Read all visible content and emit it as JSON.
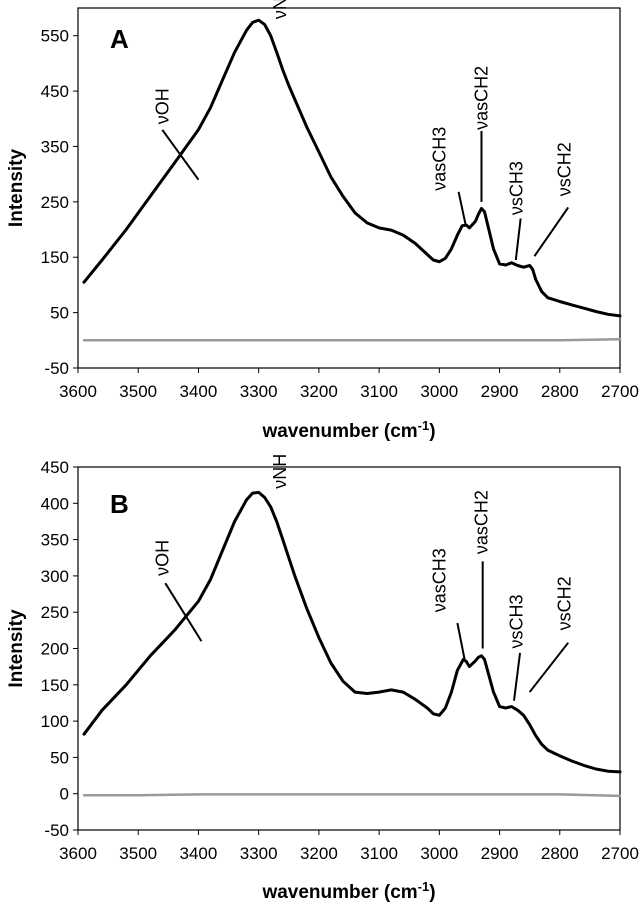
{
  "chart_data": [
    {
      "type": "line",
      "panel": "A",
      "xlabel": "wavenumber (cm-1)",
      "xlabel_main": "wavenumber (cm",
      "xlabel_sup": "-1",
      "xlabel_close": ")",
      "ylabel": "Intensity",
      "xlim": [
        3600,
        2700
      ],
      "ylim": [
        -50,
        600
      ],
      "x_ticks": [
        3600,
        3500,
        3400,
        3300,
        3200,
        3100,
        3000,
        2900,
        2800,
        2700
      ],
      "y_ticks": [
        -50,
        50,
        150,
        250,
        350,
        450,
        550
      ],
      "series": [
        {
          "name": "spectrum",
          "color": "#000000",
          "x": [
            3590,
            3560,
            3520,
            3480,
            3440,
            3400,
            3380,
            3360,
            3340,
            3320,
            3310,
            3300,
            3290,
            3280,
            3270,
            3260,
            3250,
            3240,
            3220,
            3200,
            3180,
            3160,
            3140,
            3120,
            3100,
            3080,
            3060,
            3040,
            3020,
            3010,
            3000,
            2990,
            2980,
            2970,
            2962,
            2955,
            2950,
            2940,
            2935,
            2930,
            2925,
            2920,
            2910,
            2900,
            2890,
            2880,
            2870,
            2860,
            2850,
            2845,
            2840,
            2830,
            2820,
            2800,
            2780,
            2760,
            2740,
            2720,
            2700
          ],
          "y": [
            105,
            145,
            200,
            260,
            320,
            380,
            420,
            470,
            520,
            560,
            574,
            578,
            570,
            550,
            520,
            488,
            460,
            435,
            385,
            340,
            295,
            260,
            230,
            212,
            203,
            199,
            190,
            175,
            155,
            145,
            142,
            148,
            165,
            190,
            207,
            208,
            203,
            215,
            228,
            238,
            232,
            210,
            165,
            138,
            136,
            140,
            135,
            132,
            135,
            128,
            110,
            88,
            77,
            70,
            64,
            58,
            52,
            47,
            44
          ]
        },
        {
          "name": "baseline",
          "color": "#999999",
          "x": [
            3590,
            3500,
            3400,
            3300,
            3200,
            3100,
            3000,
            2900,
            2800,
            2700
          ],
          "y": [
            0,
            0,
            0,
            0,
            0,
            0,
            0,
            0,
            0,
            2
          ]
        }
      ],
      "annotations": [
        "νOH",
        "νNH",
        "νasCH3",
        "νasCH2",
        "νsCH3",
        "νsCH2"
      ]
    },
    {
      "type": "line",
      "panel": "B",
      "xlabel": "wavenumber (cm-1)",
      "xlabel_main": "wavenumber (cm",
      "xlabel_sup": "-1",
      "xlabel_close": ")",
      "ylabel": "Intensity",
      "xlim": [
        3600,
        2700
      ],
      "ylim": [
        -50,
        450
      ],
      "x_ticks": [
        3600,
        3500,
        3400,
        3300,
        3200,
        3100,
        3000,
        2900,
        2800,
        2700
      ],
      "y_ticks": [
        -50,
        0,
        50,
        100,
        150,
        200,
        250,
        300,
        350,
        400,
        450
      ],
      "series": [
        {
          "name": "spectrum",
          "color": "#000000",
          "x": [
            3590,
            3560,
            3520,
            3480,
            3440,
            3400,
            3380,
            3360,
            3340,
            3320,
            3310,
            3300,
            3290,
            3280,
            3270,
            3260,
            3250,
            3240,
            3220,
            3200,
            3180,
            3160,
            3140,
            3120,
            3100,
            3080,
            3060,
            3040,
            3020,
            3010,
            3000,
            2990,
            2980,
            2970,
            2960,
            2955,
            2950,
            2940,
            2935,
            2930,
            2925,
            2920,
            2910,
            2900,
            2890,
            2880,
            2870,
            2860,
            2850,
            2840,
            2830,
            2820,
            2800,
            2780,
            2760,
            2740,
            2720,
            2700
          ],
          "y": [
            82,
            115,
            150,
            190,
            225,
            265,
            295,
            335,
            375,
            405,
            414,
            415,
            408,
            395,
            375,
            350,
            325,
            300,
            255,
            215,
            180,
            155,
            140,
            138,
            140,
            143,
            140,
            130,
            118,
            110,
            108,
            118,
            140,
            170,
            185,
            182,
            175,
            183,
            188,
            190,
            185,
            170,
            140,
            120,
            118,
            120,
            115,
            108,
            95,
            80,
            68,
            60,
            52,
            45,
            39,
            34,
            31,
            30
          ]
        },
        {
          "name": "baseline",
          "color": "#999999",
          "x": [
            3590,
            3500,
            3400,
            3300,
            3200,
            3100,
            3000,
            2900,
            2800,
            2700
          ],
          "y": [
            -2,
            -2,
            -1,
            -1,
            -1,
            -1,
            -1,
            -1,
            -1,
            -3
          ]
        }
      ],
      "annotations": [
        "νOH",
        "νNH",
        "νasCH3",
        "νasCH2",
        "νsCH3",
        "νsCH2"
      ]
    }
  ]
}
